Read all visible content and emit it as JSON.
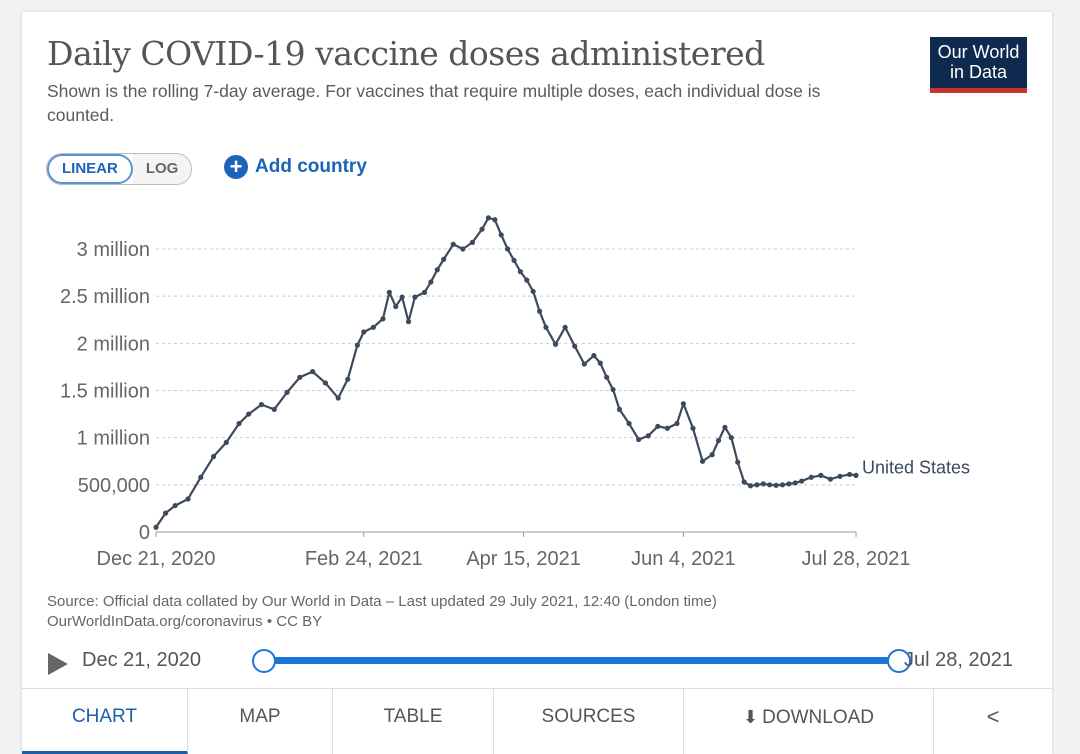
{
  "header": {
    "title": "Daily COVID-19 vaccine doses administered",
    "subtitle": "Shown is the rolling 7-day average. For vaccines that require multiple doses, each individual dose is counted.",
    "logo_line1": "Our World",
    "logo_line2": "in Data"
  },
  "controls": {
    "scale_options": [
      "LINEAR",
      "LOG"
    ],
    "selected_scale": "LINEAR",
    "add_country_label": "Add country"
  },
  "colors": {
    "line": "#3d4a5c",
    "accent": "#1d64b9",
    "grid": "#cccccc"
  },
  "chart_data": {
    "type": "line",
    "title": "Daily COVID-19 vaccine doses administered",
    "y_tick_labels": [
      "0",
      "500,000",
      "1 million",
      "1.5 million",
      "2 million",
      "2.5 million",
      "3 million"
    ],
    "y_ticks": [
      0,
      500000,
      1000000,
      1500000,
      2000000,
      2500000,
      3000000
    ],
    "ylim": [
      0,
      3000000
    ],
    "x_tick_labels": [
      "Dec 21, 2020",
      "Feb 24, 2021",
      "Apr 15, 2021",
      "Jun 4, 2021",
      "Jul 28, 2021"
    ],
    "x_ticks_day": [
      0,
      65,
      115,
      165,
      219
    ],
    "xlim_days": [
      0,
      219
    ],
    "series": [
      {
        "name": "United States",
        "x_day": [
          0,
          3,
          6,
          10,
          14,
          18,
          22,
          26,
          29,
          33,
          37,
          41,
          45,
          49,
          53,
          57,
          60,
          63,
          65,
          68,
          71,
          73,
          75,
          77,
          79,
          81,
          84,
          86,
          88,
          90,
          93,
          96,
          99,
          102,
          104,
          106,
          108,
          110,
          112,
          114,
          116,
          118,
          120,
          122,
          125,
          128,
          131,
          134,
          137,
          139,
          141,
          143,
          145,
          148,
          151,
          154,
          157,
          160,
          163,
          165,
          168,
          171,
          174,
          176,
          178,
          180,
          182,
          184,
          186,
          188,
          190,
          192,
          194,
          196,
          198,
          200,
          202,
          205,
          208,
          211,
          214,
          217,
          219
        ],
        "values": [
          50000,
          200000,
          280000,
          350000,
          580000,
          800000,
          950000,
          1150000,
          1250000,
          1350000,
          1300000,
          1480000,
          1640000,
          1700000,
          1580000,
          1420000,
          1620000,
          1980000,
          2120000,
          2170000,
          2260000,
          2540000,
          2390000,
          2490000,
          2230000,
          2490000,
          2540000,
          2650000,
          2780000,
          2890000,
          3050000,
          3000000,
          3070000,
          3210000,
          3330000,
          3310000,
          3150000,
          3000000,
          2880000,
          2760000,
          2670000,
          2550000,
          2340000,
          2170000,
          1990000,
          2170000,
          1970000,
          1780000,
          1870000,
          1790000,
          1640000,
          1510000,
          1300000,
          1150000,
          980000,
          1020000,
          1120000,
          1100000,
          1150000,
          1360000,
          1100000,
          750000,
          820000,
          970000,
          1110000,
          1000000,
          740000,
          530000,
          490000,
          500000,
          510000,
          500000,
          495000,
          500000,
          510000,
          520000,
          540000,
          580000,
          600000,
          560000,
          590000,
          610000,
          600000
        ]
      }
    ],
    "series_label": "United States"
  },
  "source": {
    "line1": "Source: Official data collated by Our World in Data – Last updated 29 July 2021, 12:40 (London time)",
    "line2": "OurWorldInData.org/coronavirus • CC BY"
  },
  "timeline": {
    "start": "Dec 21, 2020",
    "end": "Jul 28, 2021"
  },
  "tabs": {
    "chart": "CHART",
    "map": "MAP",
    "table": "TABLE",
    "sources": "SOURCES",
    "download": "DOWNLOAD"
  }
}
